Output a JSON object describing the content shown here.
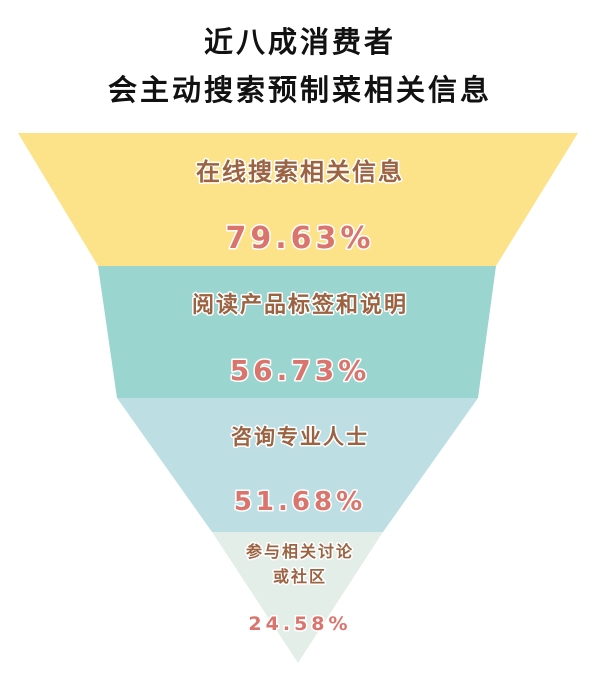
{
  "chart_data": {
    "type": "funnel",
    "title_lines": [
      "近八成消费者",
      "会主动搜索预制菜相关信息"
    ],
    "stages": [
      {
        "label_lines": [
          "在线搜索相关信息"
        ],
        "value": 79.63,
        "value_label": "79.63%",
        "color": "#FCE38A"
      },
      {
        "label_lines": [
          "阅读产品标签和说明"
        ],
        "value": 56.73,
        "value_label": "56.73%",
        "color": "#9AD5CF"
      },
      {
        "label_lines": [
          "咨询专业人士"
        ],
        "value": 51.68,
        "value_label": "51.68%",
        "color": "#BDDFE4"
      },
      {
        "label_lines": [
          "参与相关讨论",
          "或社区"
        ],
        "value": 24.58,
        "value_label": "24.58%",
        "color": "#E4EEE8"
      }
    ],
    "label_color": "#9B6341",
    "value_color": "#D9756D"
  }
}
